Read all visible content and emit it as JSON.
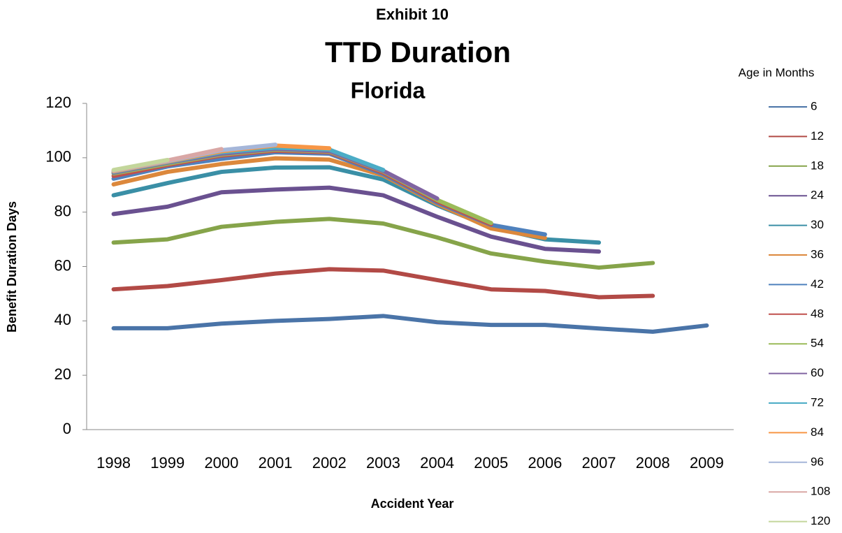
{
  "chart_data": {
    "type": "line",
    "supertitle": "Exhibit 10",
    "title": "TTD Duration",
    "subtitle": "Florida",
    "x_label": "Accident Year",
    "y_label": "Benefit Duration Days",
    "legend_title": "Age in Months",
    "legend_position": "right",
    "categories": [
      "1998",
      "1999",
      "2000",
      "2001",
      "2002",
      "2003",
      "2004",
      "2005",
      "2006",
      "2007",
      "2008",
      "2009"
    ],
    "ylim": [
      0,
      120
    ],
    "yticks": [
      0,
      20,
      40,
      60,
      80,
      100,
      120
    ],
    "series": [
      {
        "name": "6",
        "color": "#4a74a8",
        "values": [
          37.3,
          37.3,
          39,
          40,
          40.7,
          41.8,
          39.5,
          38.5,
          38.5,
          37.2,
          36,
          38.3
        ]
      },
      {
        "name": "12",
        "color": "#b24a46",
        "values": [
          51.6,
          52.8,
          55,
          57.4,
          59,
          58.5,
          55,
          51.6,
          51,
          48.7,
          49.2,
          null
        ]
      },
      {
        "name": "18",
        "color": "#86a44a",
        "values": [
          68.8,
          70,
          74.6,
          76.4,
          77.5,
          75.8,
          70.7,
          64.8,
          61.8,
          59.6,
          61.3,
          null
        ]
      },
      {
        "name": "24",
        "color": "#6a5190",
        "values": [
          79.3,
          82,
          87.3,
          88.3,
          89,
          86.2,
          78.3,
          71,
          66.5,
          65.5,
          null,
          null
        ]
      },
      {
        "name": "30",
        "color": "#3a8fa6",
        "values": [
          86.2,
          90.7,
          94.8,
          96.4,
          96.5,
          92,
          82.5,
          74.5,
          70,
          68.8,
          null,
          null
        ]
      },
      {
        "name": "36",
        "color": "#dc883c",
        "values": [
          90.2,
          94.8,
          97.7,
          99.8,
          99.3,
          93.5,
          83,
          74,
          70.5,
          null,
          null,
          null
        ]
      },
      {
        "name": "42",
        "color": "#4f81bd",
        "values": [
          92.3,
          96.8,
          99.6,
          102,
          101.5,
          94,
          83.5,
          75.3,
          71.8,
          null,
          null,
          null
        ]
      },
      {
        "name": "48",
        "color": "#c0504d",
        "values": [
          93.3,
          97.3,
          100.8,
          102.6,
          102,
          94.5,
          84,
          75.5,
          null,
          null,
          null,
          null
        ]
      },
      {
        "name": "54",
        "color": "#9bbb59",
        "values": [
          94.2,
          97.8,
          101.2,
          103,
          102.3,
          95,
          84.5,
          76,
          null,
          null,
          null,
          null
        ]
      },
      {
        "name": "60",
        "color": "#8064a2",
        "values": [
          94.5,
          98.2,
          101.5,
          103.3,
          102.5,
          95.2,
          85,
          null,
          null,
          null,
          null,
          null
        ]
      },
      {
        "name": "72",
        "color": "#4bacc6",
        "values": [
          94.8,
          98.4,
          102,
          103.7,
          103,
          95.5,
          null,
          null,
          null,
          null,
          null,
          null
        ]
      },
      {
        "name": "84",
        "color": "#f79646",
        "values": [
          95,
          98.6,
          102.4,
          104.5,
          103.5,
          null,
          null,
          null,
          null,
          null,
          null,
          null
        ]
      },
      {
        "name": "96",
        "color": "#a5b6d9",
        "values": [
          95.2,
          98.8,
          102.8,
          104.8,
          null,
          null,
          null,
          null,
          null,
          null,
          null,
          null
        ]
      },
      {
        "name": "108",
        "color": "#d9a7a5",
        "values": [
          95.3,
          99,
          103.2,
          null,
          null,
          null,
          null,
          null,
          null,
          null,
          null,
          null
        ]
      },
      {
        "name": "120",
        "color": "#c3d69b",
        "values": [
          95.5,
          99.2,
          null,
          null,
          null,
          null,
          null,
          null,
          null,
          null,
          null,
          null
        ]
      }
    ]
  }
}
